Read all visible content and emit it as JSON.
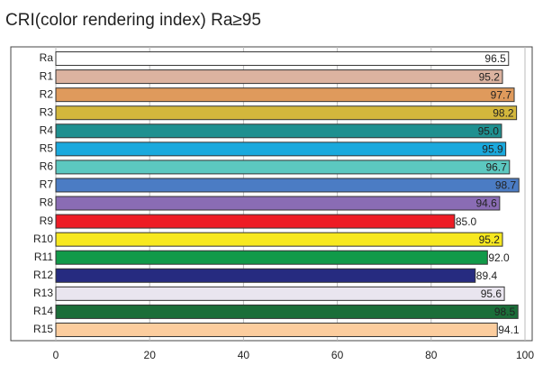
{
  "chart_data": {
    "type": "hbar",
    "title": "CRI(color rendering index) Ra≥95",
    "categories": [
      "Ra",
      "R1",
      "R2",
      "R3",
      "R4",
      "R5",
      "R6",
      "R7",
      "R8",
      "R9",
      "R10",
      "R11",
      "R12",
      "R13",
      "R14",
      "R15"
    ],
    "values": [
      96.5,
      95.2,
      97.7,
      98.2,
      95.0,
      95.9,
      96.7,
      98.7,
      94.6,
      85.0,
      95.2,
      92.0,
      89.4,
      95.6,
      98.5,
      94.1
    ],
    "value_labels": [
      "96.5",
      "95.2",
      "97.7",
      "98.2",
      "95.0",
      "95.9",
      "96.7",
      "98.7",
      "94.6",
      "85.0",
      "95.2",
      "92.0",
      "89.4",
      "95.6",
      "98.5",
      "94.1"
    ],
    "colors": [
      "#ffffff",
      "#dcb3a0",
      "#df9a5c",
      "#d3b73c",
      "#1f9090",
      "#1aa9dd",
      "#5cc8c0",
      "#4b7cc4",
      "#8a6cb4",
      "#ee1c25",
      "#f7e81f",
      "#119a49",
      "#262b80",
      "#e9e5ef",
      "#1b6e39",
      "#fccd9e"
    ],
    "xlim": [
      0,
      100
    ],
    "xticks": [
      0,
      20,
      40,
      60,
      80,
      100
    ],
    "grid": true
  }
}
